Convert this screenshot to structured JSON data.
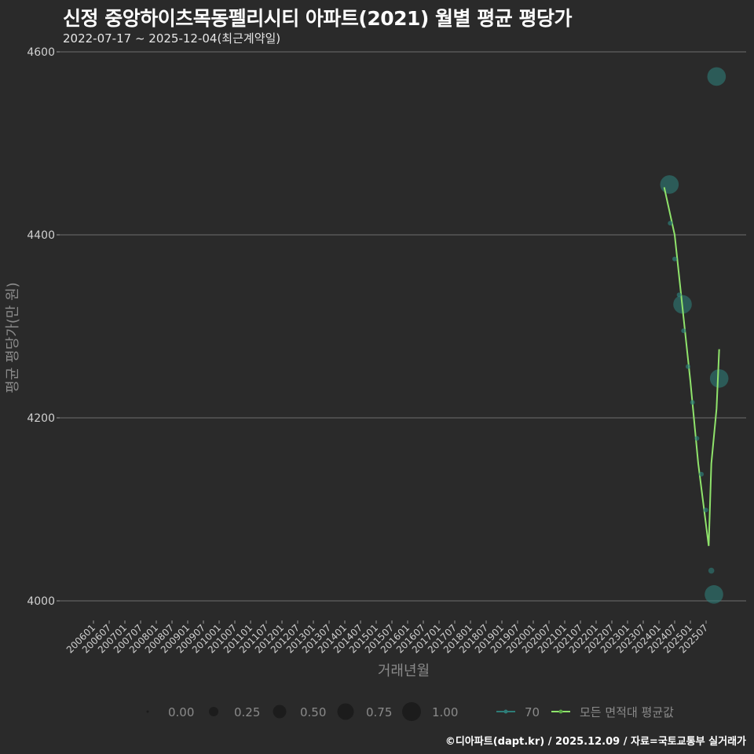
{
  "header": {
    "title": "신정 중앙하이츠목동펠리시티 아파트(2021) 월별 평균 평당가",
    "subtitle": "2022-07-17 ~ 2025-12-04(최근계약일)"
  },
  "caption": "©디아파트(dapt.kr) / 2025.12.09 / 자료=국토교통부 실거래가",
  "colors": {
    "background": "#2a2a2a",
    "grid": "#7a7a7a",
    "series_70": "#2e7d78",
    "series_avg": "#8fe36b",
    "text": "#d0d0d0",
    "axis_title": "#8a8a8a"
  },
  "chart_data": {
    "type": "scatter",
    "title": "신정 중앙하이츠목동펠리시티 아파트(2021) 월별 평균 평당가",
    "subtitle": "2022-07-17 ~ 2025-12-04(최근계약일)",
    "xlabel": "거래년월",
    "ylabel": "평균 평당가(만 원)",
    "ylim": [
      3945,
      4620
    ],
    "yticks": [
      4000,
      4200,
      4400,
      4600
    ],
    "xticks": [
      "200601",
      "200607",
      "200701",
      "200707",
      "200801",
      "200807",
      "200901",
      "200907",
      "201001",
      "201007",
      "201101",
      "201107",
      "201201",
      "201207",
      "201301",
      "201307",
      "201401",
      "201407",
      "201501",
      "201507",
      "201601",
      "201607",
      "201701",
      "201707",
      "201801",
      "201807",
      "201901",
      "201907",
      "202001",
      "202007",
      "202101",
      "202107",
      "202201",
      "202207",
      "202301",
      "202307",
      "202401",
      "202407",
      "202501",
      "202507"
    ],
    "grid": true,
    "legend_position": "bottom",
    "size_legend": {
      "values": [
        "0.00",
        "0.25",
        "0.50",
        "0.75",
        "1.00"
      ]
    },
    "series": [
      {
        "name": "70",
        "kind": "bubble",
        "points": [
          {
            "x": "2024-05",
            "y": 4455,
            "size": 0.55
          },
          {
            "x": "2024-10",
            "y": 4324,
            "size": 0.55
          },
          {
            "x": "2025-09",
            "y": 4033,
            "size": 0.05
          },
          {
            "x": "2025-10",
            "y": 4007,
            "size": 0.55
          },
          {
            "x": "2025-11",
            "y": 4573,
            "size": 0.55
          },
          {
            "x": "2025-12",
            "y": 4243,
            "size": 0.55
          }
        ]
      },
      {
        "name": "모든 면적대 평균값",
        "kind": "line",
        "points": [
          {
            "x": "2024-03",
            "y": 4452
          },
          {
            "x": "2024-07",
            "y": 4400
          },
          {
            "x": "2024-10",
            "y": 4320
          },
          {
            "x": "2025-01",
            "y": 4240
          },
          {
            "x": "2025-04",
            "y": 4150
          },
          {
            "x": "2025-08",
            "y": 4060
          },
          {
            "x": "2025-09",
            "y": 4150
          },
          {
            "x": "2025-11",
            "y": 4210
          },
          {
            "x": "2025-12",
            "y": 4275
          }
        ]
      }
    ]
  },
  "legend": {
    "sizes": [
      "0.00",
      "0.25",
      "0.50",
      "0.75",
      "1.00"
    ],
    "series": [
      "70",
      "모든 면적대 평균값"
    ]
  }
}
